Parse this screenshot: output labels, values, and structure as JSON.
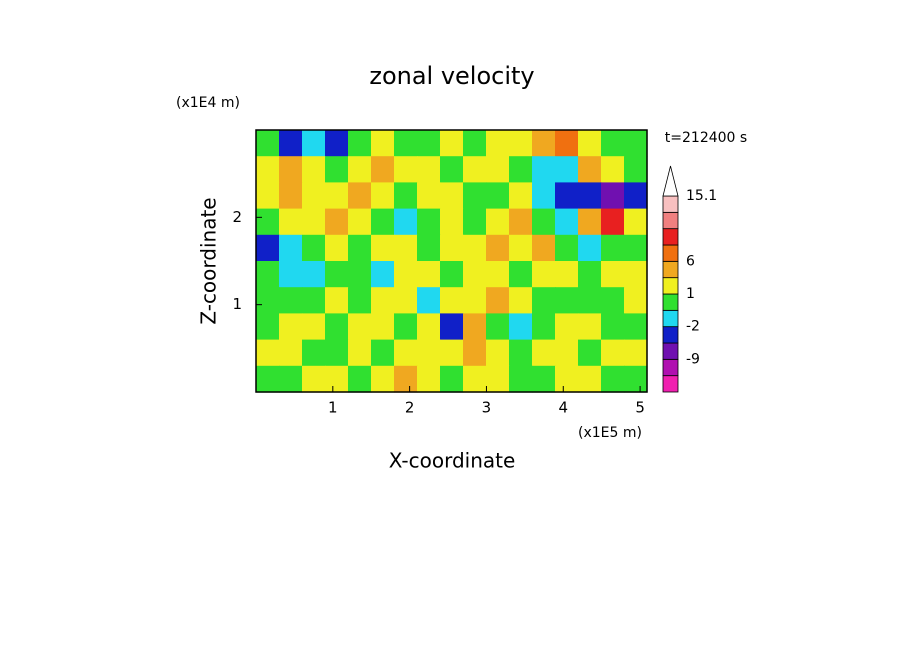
{
  "chart_data": {
    "type": "contour",
    "title": "zonal velocity",
    "x_label": "X-coordinate",
    "y_label": "Z-coordinate",
    "x_unit": "(x1E5 m)",
    "y_unit": "(x1E4 m)",
    "time_label": "t=212400 s",
    "xlim": [
      0,
      5.09
    ],
    "ylim": [
      0,
      3.0
    ],
    "xticks": [
      1,
      2,
      3,
      4,
      5
    ],
    "yticks": [
      1,
      2
    ],
    "z": [
      [
        0,
        -4,
        -1.5,
        -4,
        0,
        2,
        0,
        0,
        2,
        0,
        2,
        2,
        4,
        7,
        2,
        0,
        0
      ],
      [
        2,
        4,
        2,
        0,
        2,
        4,
        2,
        2,
        0,
        2,
        2,
        0,
        -1.5,
        -1.5,
        4,
        2,
        0
      ],
      [
        2,
        4,
        2,
        2,
        4,
        2,
        0,
        2,
        2,
        0,
        0,
        2,
        -1.5,
        -4,
        -4,
        -8,
        -4
      ],
      [
        0,
        2,
        2,
        4,
        2,
        0,
        -1.5,
        0,
        2,
        0,
        2,
        4,
        0,
        -1.5,
        4,
        10,
        2
      ],
      [
        -4,
        -1.5,
        0,
        2,
        0,
        2,
        2,
        0,
        2,
        2,
        4,
        2,
        4,
        0,
        -1.5,
        0,
        0
      ],
      [
        0,
        -1.5,
        -1.5,
        0,
        0,
        -1.5,
        2,
        2,
        0,
        2,
        2,
        0,
        2,
        2,
        0,
        2,
        2
      ],
      [
        0,
        0,
        0,
        2,
        0,
        2,
        2,
        -1.5,
        2,
        2,
        4,
        2,
        0,
        0,
        0,
        0,
        2
      ],
      [
        0,
        2,
        2,
        0,
        2,
        2,
        0,
        2,
        -4,
        4,
        0,
        -1.5,
        0,
        2,
        2,
        0,
        0
      ],
      [
        2,
        2,
        0,
        0,
        2,
        0,
        2,
        2,
        2,
        4,
        2,
        0,
        2,
        2,
        0,
        2,
        2
      ],
      [
        0,
        0,
        2,
        2,
        0,
        2,
        4,
        2,
        0,
        2,
        2,
        0,
        0,
        2,
        2,
        0,
        0
      ]
    ],
    "colorbar_levels": [
      -12,
      -9,
      -6,
      -2,
      -1,
      1,
      3,
      6,
      9,
      12,
      14,
      15.1
    ],
    "colorbar_colors": [
      "#f020b0",
      "#b010b0",
      "#7010b0",
      "#1020c8",
      "#20d8f0",
      "#30e030",
      "#f0f020",
      "#f0a820",
      "#f07010",
      "#e82020",
      "#f08080",
      "#f8c0c0",
      "#ffffff"
    ],
    "colorbar_ticks": [
      15.1,
      6,
      1,
      -2,
      -9
    ]
  }
}
